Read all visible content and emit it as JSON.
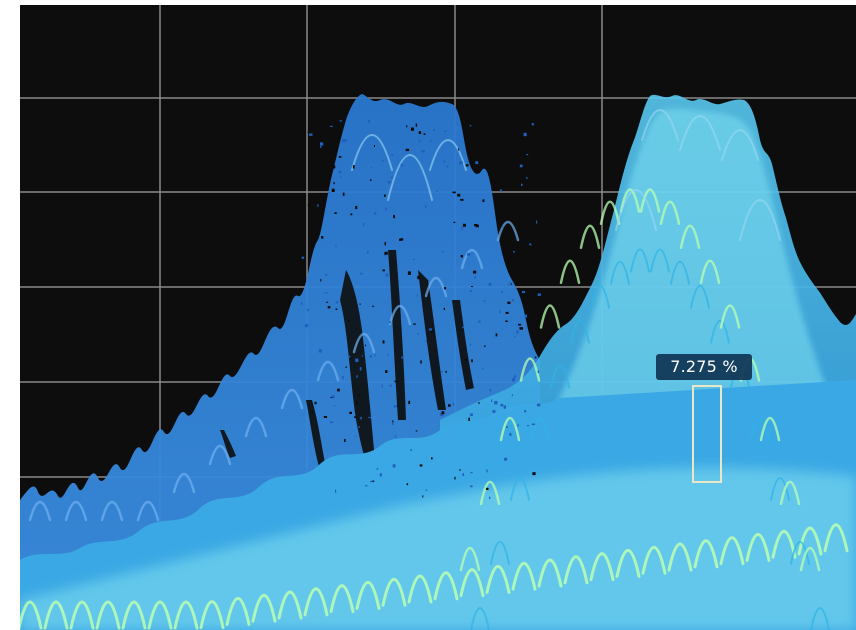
{
  "display": {
    "background_color": "#0d0d0d",
    "frame_color": "#ffffff",
    "grid_color": "#8a8a8a",
    "palette": {
      "low_density": "#1f5fbf",
      "mid_density": "#2fb4e6",
      "high_density": "#b8ffb0"
    }
  },
  "marker": {
    "readout": "7.275 %",
    "box_color": "#e8e8c8"
  }
}
